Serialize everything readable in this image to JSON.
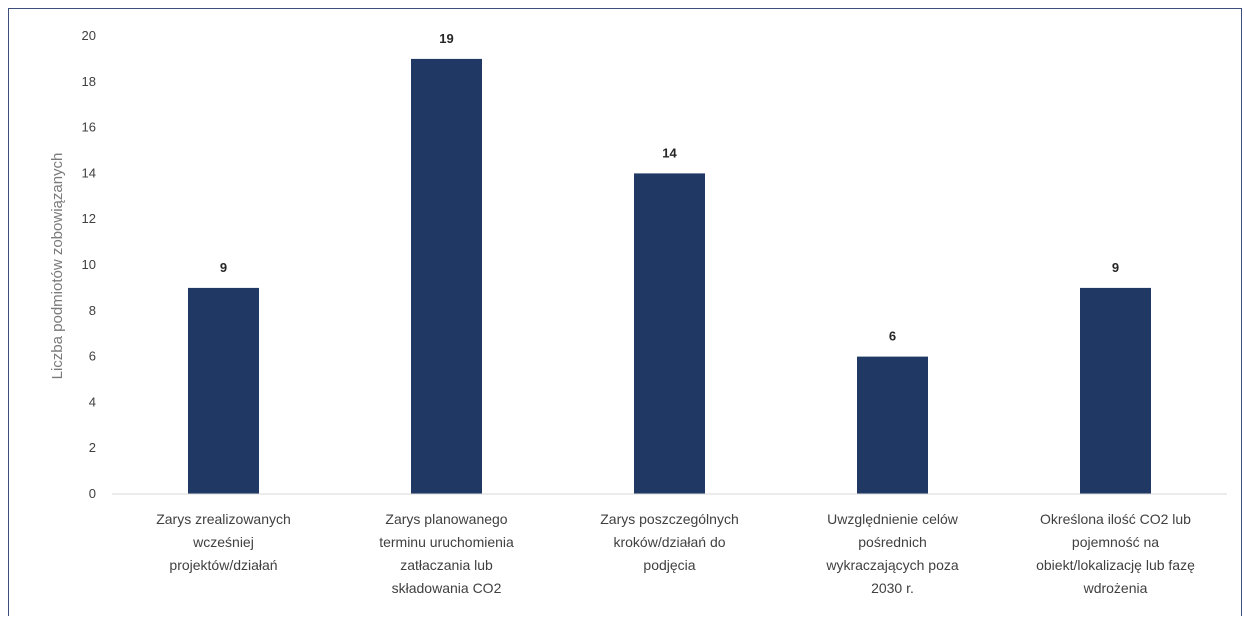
{
  "chart_data": {
    "type": "bar",
    "title": "",
    "xlabel": "",
    "ylabel": "Liczba podmiotów zobowiązanych",
    "ylim": [
      0,
      20
    ],
    "y_ticks": [
      0,
      2,
      4,
      6,
      8,
      10,
      12,
      14,
      16,
      18,
      20
    ],
    "grid": false,
    "legend": "none",
    "bar_color": "#1f3864",
    "categories": [
      [
        "Zarys zrealizowanych",
        "wcześniej",
        "projektów/działań"
      ],
      [
        "Zarys planowanego",
        "terminu uruchomienia",
        "zatłaczania lub",
        "składowania CO2"
      ],
      [
        "Zarys poszczególnych",
        "kroków/działań do",
        "podjęcia"
      ],
      [
        "Uwzględnienie celów",
        "pośrednich",
        "wykraczających poza",
        "2030 r."
      ],
      [
        "Określona ilość CO2 lub",
        "pojemność na",
        "obiekt/lokalizację lub fazę",
        "wdrożenia"
      ]
    ],
    "values": [
      9,
      19,
      14,
      6,
      9
    ]
  }
}
